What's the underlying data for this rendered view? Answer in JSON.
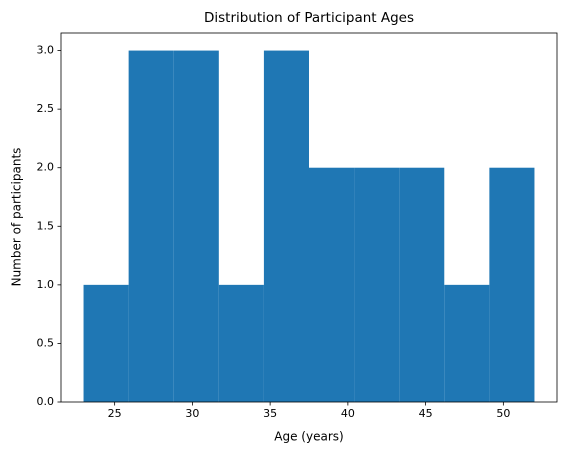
{
  "chart_data": {
    "type": "histogram",
    "title": "Distribution of Participant Ages",
    "x_label": "Age (years)",
    "y_label": "Number of participants",
    "bins": [
      23,
      25.9,
      28.8,
      31.7,
      34.6,
      37.5,
      40.4,
      43.3,
      46.2,
      49.1,
      52
    ],
    "counts": [
      1,
      3,
      3,
      1,
      3,
      2,
      2,
      2,
      1,
      2
    ],
    "color": "#1f77b4",
    "xlim": [
      21.55,
      53.45
    ],
    "xticks": [
      25,
      30,
      35,
      40,
      45,
      50
    ],
    "ylim": [
      0,
      3.15
    ],
    "yticks": [
      {
        "value": 0,
        "label": "0.0"
      },
      0.5,
      {
        "value": 1,
        "label": "1.0"
      },
      1.5,
      {
        "value": 2,
        "label": "2.0"
      },
      2.5,
      {
        "value": 3,
        "label": "3.0"
      }
    ]
  }
}
